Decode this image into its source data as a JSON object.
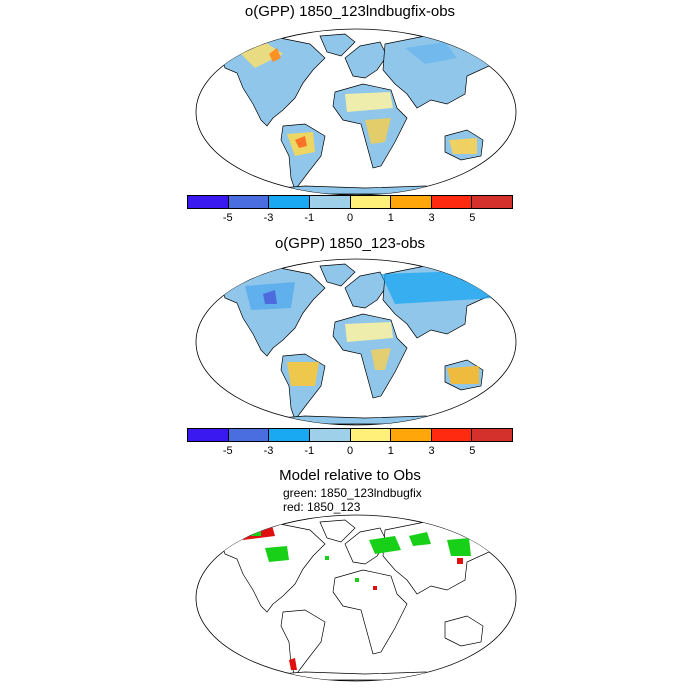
{
  "maps": [
    {
      "title": "o(GPP) 1850_123lndbugfix-obs"
    },
    {
      "title": "o(GPP) 1850_123-obs"
    }
  ],
  "legend": {
    "colors": [
      "#3a18f0",
      "#4a6de0",
      "#19a9f2",
      "#9fd0ea",
      "#fff07a",
      "#ffa60a",
      "#ff2a10",
      "#d4302c"
    ],
    "tick_labels": [
      "-5",
      "-3",
      "-1",
      "0",
      "1",
      "3",
      "5"
    ]
  },
  "comparison": {
    "title": "Model relative to Obs",
    "line1": "green: 1850_123lndbugfix",
    "line2": "red: 1850_123"
  }
}
